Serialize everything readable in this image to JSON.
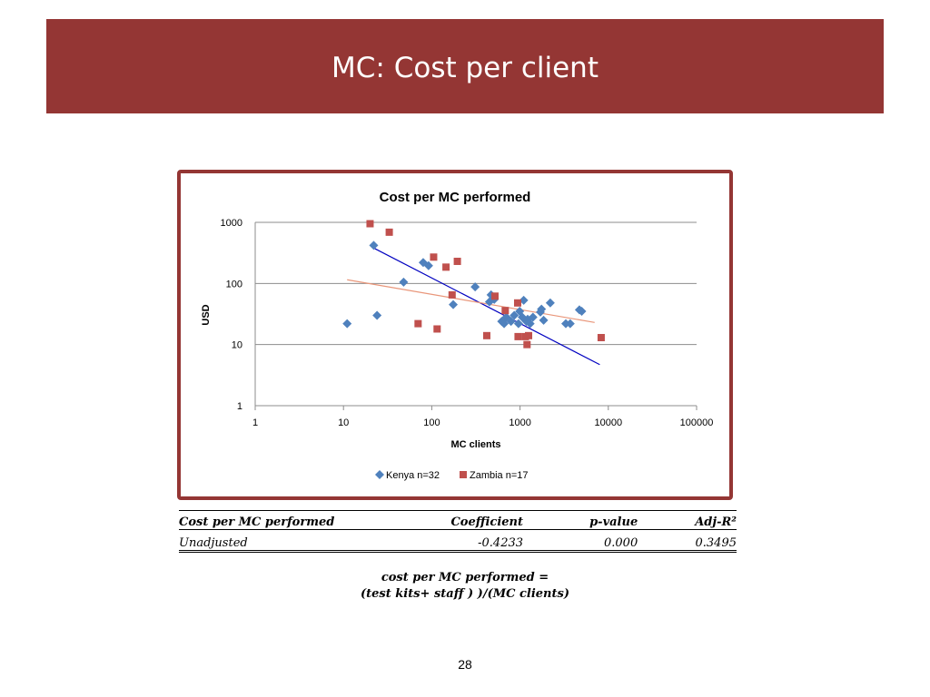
{
  "slide": {
    "title": "MC: Cost per client",
    "page_number": "28",
    "formula_line1": "cost per MC performed =",
    "formula_line2": "(test kits+ staff ) )/(MC clients)"
  },
  "colors": {
    "title_bar": "#943634",
    "kenya": "#4F81BD",
    "zambia": "#C0504D",
    "kenya_trend": "#0000C0",
    "zambia_trend": "#E9967A"
  },
  "table": {
    "headers": [
      "Cost per MC performed",
      "Coefficient",
      "p-value",
      "Adj-R²"
    ],
    "rows": [
      [
        "Unadjusted",
        "-0.4233",
        "0.000",
        "0.3495"
      ]
    ]
  },
  "chart_data": {
    "type": "scatter",
    "title": "Cost per MC performed",
    "xlabel": "MC clients",
    "ylabel": "USD",
    "x_scale": "log",
    "y_scale": "log",
    "xlim": [
      1,
      100000
    ],
    "ylim": [
      1,
      1000
    ],
    "x_ticks": [
      "1",
      "10",
      "100",
      "1000",
      "10000",
      "100000"
    ],
    "y_ticks": [
      "1",
      "10",
      "100",
      "1000"
    ],
    "grid": "horizontal",
    "legend": "bottom",
    "series": [
      {
        "name": "Kenya n=32",
        "marker": "diamond",
        "points": [
          [
            11,
            22
          ],
          [
            22,
            420
          ],
          [
            24,
            30
          ],
          [
            48,
            105
          ],
          [
            80,
            220
          ],
          [
            92,
            195
          ],
          [
            175,
            45
          ],
          [
            310,
            88
          ],
          [
            450,
            50
          ],
          [
            470,
            65
          ],
          [
            510,
            55
          ],
          [
            620,
            24
          ],
          [
            660,
            22
          ],
          [
            700,
            28
          ],
          [
            790,
            24
          ],
          [
            860,
            30
          ],
          [
            960,
            22
          ],
          [
            990,
            35
          ],
          [
            1060,
            28
          ],
          [
            1100,
            53
          ],
          [
            1180,
            24
          ],
          [
            1220,
            26
          ],
          [
            1300,
            22
          ],
          [
            1400,
            28
          ],
          [
            1700,
            34
          ],
          [
            1750,
            38
          ],
          [
            1850,
            25
          ],
          [
            2200,
            48
          ],
          [
            3300,
            22
          ],
          [
            3700,
            22
          ],
          [
            4700,
            37
          ],
          [
            5000,
            35
          ]
        ]
      },
      {
        "name": "Zambia n=17",
        "marker": "square",
        "points": [
          [
            20,
            950
          ],
          [
            33,
            690
          ],
          [
            70,
            22
          ],
          [
            105,
            270
          ],
          [
            115,
            18
          ],
          [
            145,
            185
          ],
          [
            170,
            65
          ],
          [
            195,
            230
          ],
          [
            420,
            14
          ],
          [
            520,
            62
          ],
          [
            680,
            36
          ],
          [
            940,
            48
          ],
          [
            950,
            13.5
          ],
          [
            1150,
            13.5
          ],
          [
            1200,
            10
          ],
          [
            1250,
            14
          ],
          [
            8300,
            13
          ]
        ]
      }
    ],
    "trendlines": [
      {
        "series": "Kenya n=32",
        "from": [
          22,
          380
        ],
        "to": [
          8000,
          4.7
        ]
      },
      {
        "series": "Zambia n=17",
        "from": [
          11,
          115
        ],
        "to": [
          7000,
          23
        ]
      }
    ]
  }
}
